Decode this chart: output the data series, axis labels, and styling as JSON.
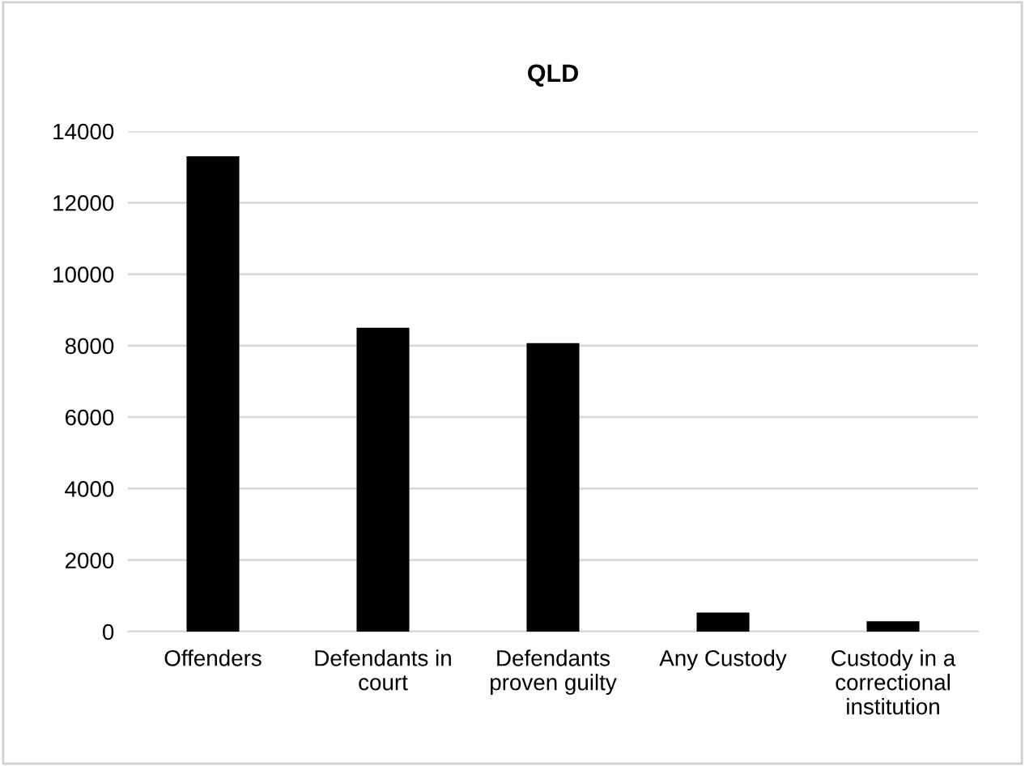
{
  "chart_data": {
    "type": "bar",
    "title": "QLD",
    "categories": [
      "Offenders",
      "Defendants in\ncourt",
      "Defendants\nproven guilty",
      "Any Custody",
      "Custody in a\ncorrectional\ninstitution"
    ],
    "values": [
      13300,
      8500,
      8070,
      530,
      290
    ],
    "color": "#000000",
    "ylim": [
      0,
      14000
    ],
    "yticks": [
      0,
      2000,
      4000,
      6000,
      8000,
      10000,
      12000,
      14000
    ],
    "grid": "y",
    "legend": false
  }
}
